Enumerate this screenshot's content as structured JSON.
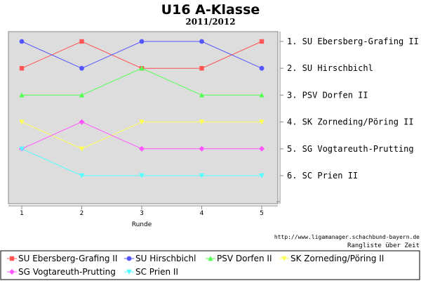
{
  "chart_data": {
    "type": "line",
    "title": "U16 A-Klasse",
    "subtitle": "2011/2012",
    "xlabel": "Runde",
    "x": [
      1,
      2,
      3,
      4,
      5
    ],
    "ylim": [
      0,
      7
    ],
    "y_inverted": true,
    "grid": false,
    "background": "#dddddd",
    "legend_position": "bottom",
    "series": [
      {
        "name": "SU Ebersberg-Grafing II",
        "color": "#ff5555",
        "marker": "square",
        "values": [
          2,
          1,
          2,
          2,
          1
        ]
      },
      {
        "name": "SU Hirschbichl",
        "color": "#5555ff",
        "marker": "circle",
        "values": [
          1,
          2,
          1,
          1,
          2
        ]
      },
      {
        "name": "PSV Dorfen II",
        "color": "#55ff55",
        "marker": "triangle-up",
        "values": [
          3,
          3,
          2,
          3,
          3
        ]
      },
      {
        "name": "SK Zorneding/Pöring II",
        "color": "#ffff55",
        "marker": "triangle-down",
        "values": [
          4,
          5,
          4,
          4,
          4
        ]
      },
      {
        "name": "SG Vogtareuth-Prutting",
        "color": "#ff55ff",
        "marker": "diamond",
        "values": [
          5,
          4,
          5,
          5,
          5
        ]
      },
      {
        "name": "SC Prien II",
        "color": "#55ffff",
        "marker": "triangle-down",
        "values": [
          5,
          6,
          6,
          6,
          6
        ]
      }
    ],
    "final_ranking": [
      "1. SU Ebersberg-Grafing II",
      "2. SU Hirschbichl",
      "3. PSV Dorfen II",
      "4. SK Zorneding/Pöring II",
      "5. SG Vogtareuth-Prutting",
      "6. SC Prien II"
    ],
    "source": "http://www.ligamanager.schachbund-bayern.de",
    "caption": "Rangliste über Zeit"
  }
}
